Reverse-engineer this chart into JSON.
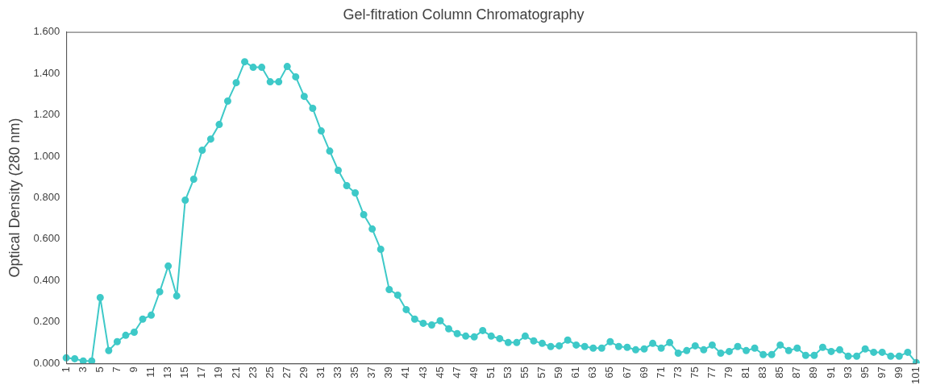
{
  "chart_data": {
    "type": "line",
    "title": "Gel-fitration Column Chromatography",
    "ylabel": "Optical Density (280 nm)",
    "categories": [
      "1",
      null,
      "3",
      null,
      "5",
      null,
      "7",
      null,
      "9",
      null,
      "11",
      null,
      "13",
      null,
      "15",
      null,
      "17",
      null,
      "19",
      null,
      "21",
      null,
      "23",
      null,
      "25",
      null,
      "27",
      null,
      "29",
      null,
      "31",
      null,
      "33",
      null,
      "35",
      null,
      "37",
      null,
      "39",
      null,
      "41",
      null,
      "43",
      null,
      "45",
      null,
      "47",
      null,
      "49",
      null,
      "51",
      null,
      "53",
      null,
      "55",
      null,
      "57",
      null,
      "59",
      null,
      "61",
      null,
      "63",
      null,
      "65",
      null,
      "67",
      null,
      "69",
      null,
      "71",
      null,
      "73",
      null,
      "75",
      null,
      "77",
      null,
      "79",
      null,
      "81",
      null,
      "83",
      null,
      "85",
      null,
      "87",
      null,
      "89",
      null,
      "91",
      null,
      "93",
      null,
      "95",
      null,
      "97",
      null,
      "99",
      null,
      "101"
    ],
    "series": [
      {
        "color": "#3ec9c8",
        "values": [
          0.027,
          0.023,
          0.012,
          0.012,
          0.318,
          0.062,
          0.105,
          0.136,
          0.151,
          0.214,
          0.233,
          0.346,
          0.47,
          0.326,
          0.788,
          0.889,
          1.029,
          1.083,
          1.153,
          1.266,
          1.355,
          1.456,
          1.429,
          1.429,
          1.359,
          1.359,
          1.433,
          1.383,
          1.289,
          1.231,
          1.122,
          1.025,
          0.932,
          0.858,
          0.823,
          0.718,
          0.649,
          0.551,
          0.357,
          0.33,
          0.26,
          0.214,
          0.194,
          0.186,
          0.206,
          0.167,
          0.144,
          0.132,
          0.128,
          0.159,
          0.132,
          0.12,
          0.101,
          0.101,
          0.132,
          0.109,
          0.097,
          0.082,
          0.085,
          0.113,
          0.089,
          0.082,
          0.074,
          0.074,
          0.105,
          0.082,
          0.078,
          0.066,
          0.07,
          0.097,
          0.074,
          0.101,
          0.05,
          0.062,
          0.085,
          0.066,
          0.089,
          0.05,
          0.058,
          0.082,
          0.062,
          0.074,
          0.043,
          0.043,
          0.089,
          0.062,
          0.074,
          0.039,
          0.039,
          0.078,
          0.058,
          0.066,
          0.035,
          0.035,
          0.07,
          0.054,
          0.054,
          0.035,
          0.035,
          0.054,
          0.004
        ]
      }
    ],
    "ylim": [
      0,
      1.6
    ],
    "yticks": [
      {
        "value": 0,
        "label": "0.000"
      },
      {
        "value": 0.2,
        "label": "0.200"
      },
      {
        "value": 0.4,
        "label": "0.400"
      },
      {
        "value": 0.6,
        "label": "0.600"
      },
      {
        "value": 0.8,
        "label": "0.800"
      },
      {
        "value": 1.0,
        "label": "1.000"
      },
      {
        "value": 1.2,
        "label": "1.200"
      },
      {
        "value": 1.4,
        "label": "1.400"
      },
      {
        "value": 1.6,
        "label": "1.600"
      }
    ],
    "marker": "circle",
    "line_style": "solid"
  }
}
